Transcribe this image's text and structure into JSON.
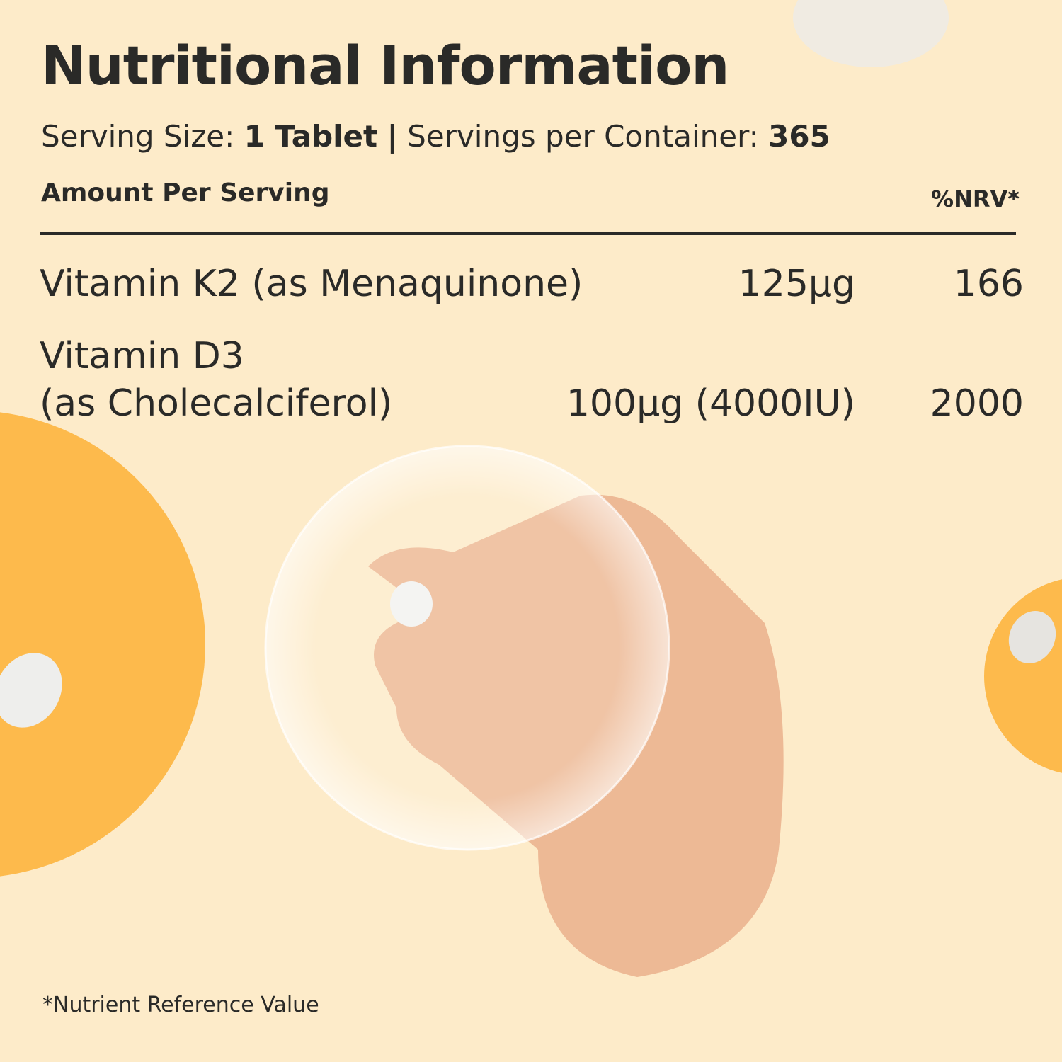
{
  "header": {
    "title": "Nutritional Information"
  },
  "serving": {
    "size_label": "Serving Size:",
    "size_value": "1 Tablet",
    "separator": "|",
    "servings_label": "Servings per Container:",
    "servings_value": 365
  },
  "table": {
    "columns": [
      "Amount Per Serving",
      "%NRV*"
    ],
    "rows": [
      {
        "name": [
          "Vitamin K2 (as Menaquinone)"
        ],
        "amount": "125µg",
        "nrv": 166
      },
      {
        "name": [
          "Vitamin D3",
          "(as Cholecalciferol)"
        ],
        "amount": "100µg (4000IU)",
        "nrv": 2000
      }
    ]
  },
  "footnote": "*Nutrient Reference Value"
}
